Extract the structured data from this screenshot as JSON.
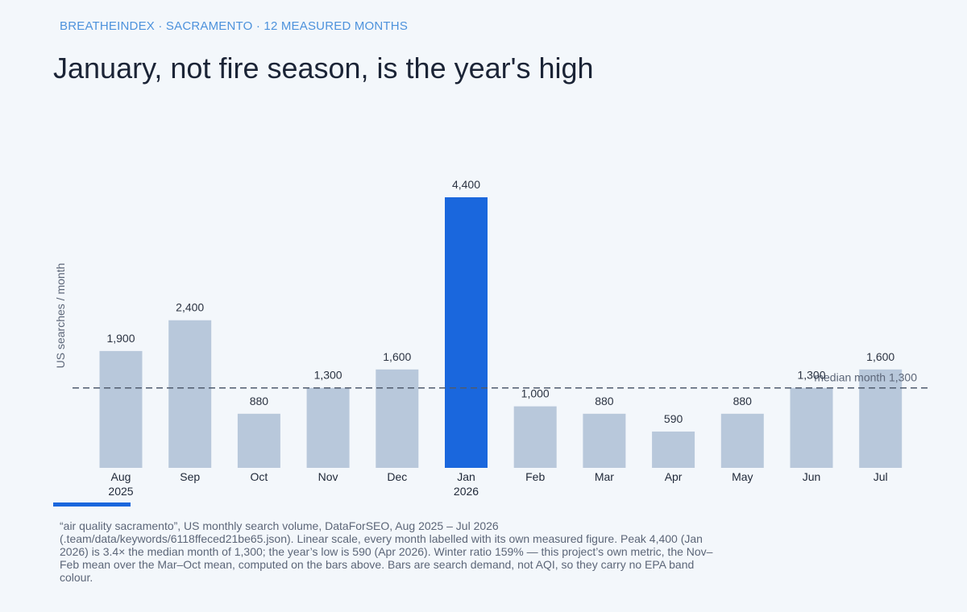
{
  "header": {
    "eyebrow": "BREATHEINDEX · SACRAMENTO · 12 MEASURED MONTHS",
    "title": "January, not fire season, is the year's high"
  },
  "chart_data": {
    "type": "bar",
    "ylabel": "US searches / month",
    "categories": [
      [
        "Aug",
        "2025"
      ],
      [
        "Sep"
      ],
      [
        "Oct"
      ],
      [
        "Nov"
      ],
      [
        "Dec"
      ],
      [
        "Jan",
        "2026"
      ],
      [
        "Feb"
      ],
      [
        "Mar"
      ],
      [
        "Apr"
      ],
      [
        "May"
      ],
      [
        "Jun"
      ],
      [
        "Jul"
      ]
    ],
    "values": [
      1900,
      2400,
      880,
      1300,
      1600,
      4400,
      1000,
      880,
      590,
      880,
      1300,
      1600
    ],
    "value_labels": [
      "1,900",
      "2,400",
      "880",
      "1,300",
      "1,600",
      "4,400",
      "1,000",
      "880",
      "590",
      "880",
      "1,300",
      "1,600"
    ],
    "highlight_index": 5,
    "median": 1300,
    "median_label": "median month  1,300",
    "ylim": [
      0,
      4400
    ],
    "colors": {
      "bar": "#b8c8db",
      "highlight": "#1a67dd",
      "median_line": "#4f5b6e"
    }
  },
  "footnote": "“air quality sacramento”, US monthly search volume, DataForSEO, Aug 2025 – Jul 2026 (.team/data/keywords/6118ffeced21be65.json). Linear scale, every month labelled with its own measured figure. Peak 4,400 (Jan 2026) is 3.4× the median month of 1,300; the year’s low is 590 (Apr 2026). Winter ratio 159% — this project’s own metric, the Nov–Feb mean over the Mar–Oct mean, computed on the bars above. Bars are search demand, not AQI, so they carry no EPA band colour."
}
